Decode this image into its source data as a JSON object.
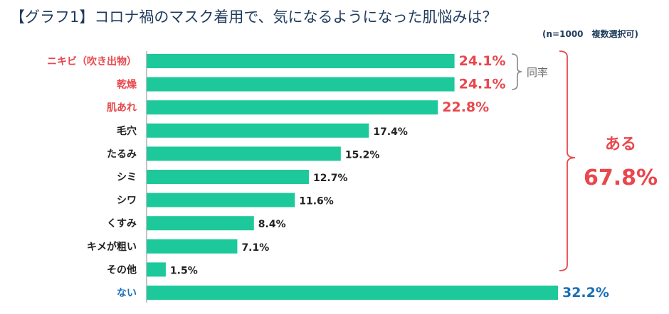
{
  "chart_data": {
    "type": "bar",
    "orientation": "horizontal",
    "title": "【グラフ1】コロナ禍のマスク着用で、気になるようになった肌悩みは？",
    "subtitle": "(n=1000　複数選択可)",
    "categories": [
      "ニキビ（吹き出物）",
      "乾燥",
      "肌あれ",
      "毛穴",
      "たるみ",
      "シミ",
      "シワ",
      "くすみ",
      "キメが粗い",
      "その他",
      "ない"
    ],
    "values": [
      24.1,
      24.1,
      22.8,
      17.4,
      15.2,
      12.7,
      11.6,
      8.4,
      7.1,
      1.5,
      32.2
    ],
    "value_labels": [
      "24.1%",
      "24.1%",
      "22.8%",
      "17.4%",
      "15.2%",
      "12.7%",
      "11.6%",
      "8.4%",
      "7.1%",
      "1.5%",
      "32.2%"
    ],
    "label_colors": [
      "#e8474c",
      "#e8474c",
      "#e8474c",
      "#222222",
      "#222222",
      "#222222",
      "#222222",
      "#222222",
      "#222222",
      "#222222",
      "#1a6fb5"
    ],
    "bar_color": "#1dc99a",
    "xlim": [
      0,
      33
    ],
    "grid": false
  },
  "annotations": {
    "same_rate": "同率",
    "group_label": "ある",
    "group_value": "67.8%"
  },
  "colors": {
    "accent_red": "#e8474c",
    "accent_blue": "#1a6fb5",
    "title": "#1f3b5c"
  }
}
